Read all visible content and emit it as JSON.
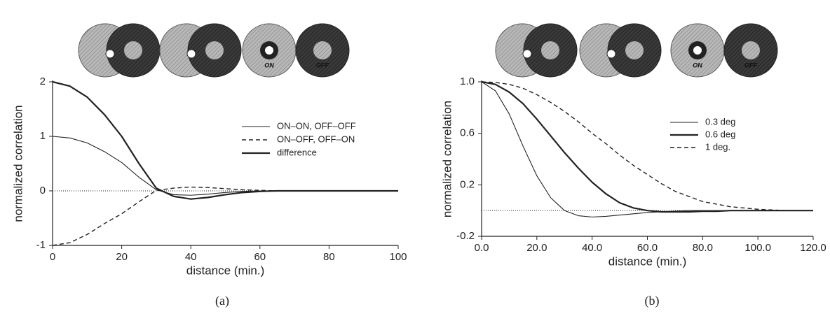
{
  "chart_data": [
    {
      "type": "line",
      "caption": "(a)",
      "xlabel": "distance (min.)",
      "ylabel": "normalized correlation",
      "icon_labels": [
        "ON",
        "OFF"
      ],
      "x": [
        0,
        5,
        10,
        15,
        20,
        25,
        30,
        35,
        40,
        45,
        50,
        55,
        60,
        65,
        70,
        75,
        80,
        85,
        90,
        95,
        100
      ],
      "xlim": [
        0,
        100
      ],
      "xticks": [
        0,
        20,
        40,
        60,
        80,
        100
      ],
      "ylim": [
        -1,
        2
      ],
      "yticks": [
        -1,
        0,
        1,
        2
      ],
      "reference_line": 0,
      "legend": "right",
      "series": [
        {
          "name": "ON–ON, OFF–OFF",
          "color": "#222222",
          "style": "thin",
          "values": [
            1,
            0.97,
            0.88,
            0.72,
            0.52,
            0.25,
            0.02,
            -0.07,
            -0.08,
            -0.06,
            -0.03,
            -0.01,
            0,
            0,
            0,
            0,
            0,
            0,
            0,
            0,
            0
          ]
        },
        {
          "name": "ON–OFF, OFF–ON",
          "color": "#222222",
          "style": "dashed",
          "values": [
            -1,
            -0.95,
            -0.8,
            -0.6,
            -0.42,
            -0.2,
            0.01,
            0.05,
            0.07,
            0.06,
            0.04,
            0.02,
            0.01,
            0,
            0,
            0,
            0,
            0,
            0,
            0,
            0
          ]
        },
        {
          "name": "difference",
          "color": "#222222",
          "style": "thick",
          "values": [
            2,
            1.92,
            1.72,
            1.4,
            1,
            0.5,
            0.05,
            -0.1,
            -0.15,
            -0.12,
            -0.07,
            -0.03,
            -0.01,
            0,
            0,
            0,
            0,
            0,
            0,
            0,
            0
          ]
        }
      ]
    },
    {
      "type": "line",
      "caption": "(b)",
      "xlabel": "distance (min.)",
      "ylabel": "normalized correlation",
      "icon_labels": [
        "ON",
        "OFF"
      ],
      "x": [
        0,
        5,
        10,
        15,
        20,
        25,
        30,
        35,
        40,
        45,
        50,
        55,
        60,
        65,
        70,
        75,
        80,
        85,
        90,
        95,
        100,
        105,
        110,
        115,
        120
      ],
      "xlim": [
        0,
        120
      ],
      "xticks": [
        {
          "value": 0,
          "label": "0.0"
        },
        {
          "value": 20,
          "label": "20.0"
        },
        {
          "value": 40,
          "label": "40.0"
        },
        {
          "value": 60,
          "label": "60.0"
        },
        {
          "value": 80,
          "label": "80.0"
        },
        {
          "value": 100,
          "label": "100.0"
        },
        {
          "value": 120,
          "label": "120.0"
        }
      ],
      "ylim": [
        -0.2,
        1.0
      ],
      "yticks": [
        -0.2,
        0.2,
        0.6,
        {
          "value": 1.0,
          "label": "1.0"
        }
      ],
      "reference_line": 0,
      "legend": "right",
      "series": [
        {
          "name": "0.3 deg",
          "color": "#222222",
          "style": "thin",
          "values": [
            1,
            0.93,
            0.75,
            0.5,
            0.27,
            0.1,
            0,
            -0.04,
            -0.05,
            -0.045,
            -0.035,
            -0.025,
            -0.015,
            -0.01,
            -0.005,
            0,
            0,
            0,
            0,
            0,
            0,
            0,
            0,
            0,
            0
          ]
        },
        {
          "name": "0.6 deg",
          "color": "#222222",
          "style": "thick",
          "values": [
            1,
            0.98,
            0.92,
            0.83,
            0.71,
            0.58,
            0.45,
            0.33,
            0.22,
            0.13,
            0.06,
            0.02,
            0,
            -0.01,
            -0.01,
            -0.01,
            -0.005,
            -0.005,
            0,
            0,
            0,
            0,
            0,
            0,
            0
          ]
        },
        {
          "name": "1 deg.",
          "color": "#222222",
          "style": "dashed",
          "values": [
            1,
            0.995,
            0.98,
            0.95,
            0.9,
            0.84,
            0.77,
            0.69,
            0.6,
            0.52,
            0.43,
            0.35,
            0.28,
            0.21,
            0.15,
            0.11,
            0.07,
            0.05,
            0.03,
            0.02,
            0.01,
            0.005,
            0,
            0,
            0
          ]
        }
      ]
    }
  ]
}
